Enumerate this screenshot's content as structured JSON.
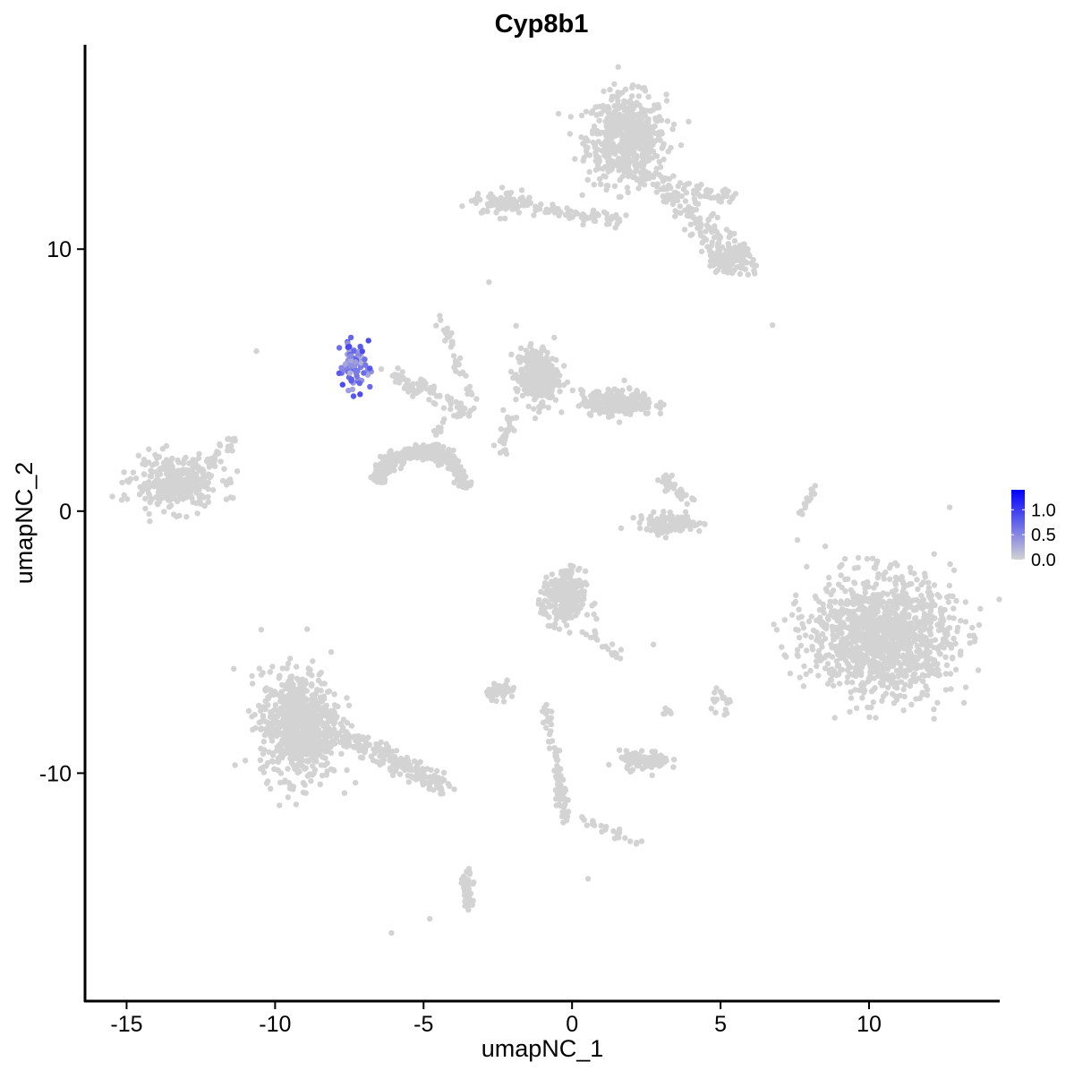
{
  "chart_data": {
    "type": "scatter",
    "title": "Cyp8b1",
    "xlabel": "umapNC_1",
    "ylabel": "umapNC_2",
    "xlim": [
      -16.4,
      14.4
    ],
    "ylim": [
      -18.7,
      17.8
    ],
    "x_ticks": [
      -15,
      -10,
      -5,
      0,
      5,
      10
    ],
    "x_tick_labels": [
      "-15",
      "-10",
      "-5",
      "0",
      "5",
      "10"
    ],
    "y_ticks": [
      -10,
      0,
      10
    ],
    "y_tick_labels": [
      "-10",
      "0",
      "10"
    ],
    "grid": false,
    "legend": {
      "position": "right",
      "type": "colorbar",
      "tick_labels": [
        "1.0",
        "0.5",
        "0.0"
      ],
      "tick_values": [
        1.0,
        0.5,
        0.0
      ],
      "range": [
        0,
        1.4
      ],
      "low_color": "#d3d3d3",
      "high_color": "#0000ff"
    },
    "note_clusters": "cells shown as groups of points in data units",
    "clusters": [
      {
        "kind": "blob",
        "c": [
          1.84,
          14.2
        ],
        "s": [
          1.1,
          1.4
        ],
        "n": 600
      },
      {
        "kind": "seg",
        "a": [
          2.74,
          12.66
        ],
        "b": [
          5.75,
          9.59
        ],
        "w": 0.5,
        "n": 150
      },
      {
        "kind": "blob",
        "c": [
          5.3,
          9.59
        ],
        "s": [
          0.7,
          0.4
        ],
        "n": 100
      },
      {
        "kind": "seg",
        "a": [
          3.64,
          12.32
        ],
        "b": [
          5.45,
          11.98
        ],
        "w": 0.3,
        "n": 40
      },
      {
        "kind": "blob",
        "c": [
          -2.38,
          11.8
        ],
        "s": [
          0.7,
          0.35
        ],
        "n": 80
      },
      {
        "kind": "seg",
        "a": [
          -2.38,
          11.64
        ],
        "b": [
          1.84,
          11.13
        ],
        "w": 0.25,
        "n": 80
      },
      {
        "kind": "blob",
        "c": [
          -13.37,
          1.06
        ],
        "s": [
          1.2,
          0.8
        ],
        "n": 350
      },
      {
        "kind": "seg",
        "a": [
          -12.32,
          1.74
        ],
        "b": [
          -11.42,
          2.76
        ],
        "w": 0.2,
        "n": 30
      },
      {
        "kind": "seg",
        "a": [
          -5.99,
          5.15
        ],
        "b": [
          -3.58,
          3.79
        ],
        "w": 0.35,
        "n": 80
      },
      {
        "kind": "seg",
        "a": [
          -4.49,
          7.54
        ],
        "b": [
          -3.28,
          4.13
        ],
        "w": 0.2,
        "n": 40
      },
      {
        "kind": "seg",
        "a": [
          -4.49,
          3.45
        ],
        "b": [
          -4.64,
          1.74
        ],
        "w": 0.2,
        "n": 20
      },
      {
        "kind": "arc",
        "c": [
          -5.09,
          0.89
        ],
        "r": [
          1.5,
          1.4
        ],
        "w": 0.3,
        "n": 400
      },
      {
        "kind": "blob",
        "c": [
          -1.17,
          5.15
        ],
        "s": [
          0.6,
          0.9
        ],
        "n": 300
      },
      {
        "kind": "blob",
        "c": [
          1.54,
          4.13
        ],
        "s": [
          1.0,
          0.4
        ],
        "n": 250
      },
      {
        "kind": "seg",
        "a": [
          -2.08,
          3.79
        ],
        "b": [
          -2.38,
          2.08
        ],
        "w": 0.2,
        "n": 30
      },
      {
        "kind": "blob",
        "c": [
          3.34,
          -0.48
        ],
        "s": [
          0.9,
          0.3
        ],
        "n": 120
      },
      {
        "kind": "seg",
        "a": [
          3.04,
          1.23
        ],
        "b": [
          3.95,
          0.38
        ],
        "w": 0.25,
        "n": 40
      },
      {
        "kind": "blob",
        "c": [
          10.42,
          -4.74
        ],
        "s": [
          2.0,
          1.9
        ],
        "n": 1200
      },
      {
        "kind": "blob",
        "c": [
          -0.27,
          -3.38
        ],
        "s": [
          0.6,
          0.9
        ],
        "n": 250
      },
      {
        "kind": "seg",
        "a": [
          0.33,
          -4.4
        ],
        "b": [
          1.57,
          -5.6
        ],
        "w": 0.2,
        "n": 20
      },
      {
        "kind": "blob",
        "c": [
          -9.16,
          -8.16
        ],
        "s": [
          1.1,
          1.7
        ],
        "n": 800
      },
      {
        "kind": "seg",
        "a": [
          -7.8,
          -8.5
        ],
        "b": [
          -4.19,
          -10.55
        ],
        "w": 0.4,
        "n": 200
      },
      {
        "kind": "blob",
        "c": [
          2.44,
          -9.52
        ],
        "s": [
          0.7,
          0.3
        ],
        "n": 100
      },
      {
        "kind": "blob",
        "c": [
          -2.38,
          -6.86
        ],
        "s": [
          0.4,
          0.25
        ],
        "n": 60
      },
      {
        "kind": "seg",
        "a": [
          -0.87,
          -7.47
        ],
        "b": [
          -0.21,
          -11.9
        ],
        "w": 0.2,
        "n": 80
      },
      {
        "kind": "seg",
        "a": [
          0.33,
          -11.74
        ],
        "b": [
          2.44,
          -12.76
        ],
        "w": 0.2,
        "n": 25
      },
      {
        "kind": "seg",
        "a": [
          -3.64,
          -13.6
        ],
        "b": [
          -3.43,
          -15.15
        ],
        "w": 0.2,
        "n": 50
      },
      {
        "kind": "seg",
        "a": [
          7.71,
          -0.14
        ],
        "b": [
          8.16,
          0.89
        ],
        "w": 0.1,
        "n": 20
      },
      {
        "kind": "blob",
        "c": [
          5.0,
          -7.3
        ],
        "s": [
          0.3,
          0.3
        ],
        "n": 20
      },
      {
        "kind": "blob",
        "c": [
          3.19,
          -7.65
        ],
        "s": [
          0.15,
          0.2
        ],
        "n": 8
      }
    ],
    "single_points": [
      [
        -10.63,
        6.11
      ],
      [
        6.75,
        7.1
      ],
      [
        -6.08,
        -16.1
      ],
      [
        -4.79,
        -15.56
      ],
      [
        0.54,
        -14.03
      ],
      [
        2.74,
        -5.09
      ],
      [
        -2.8,
        8.74
      ]
    ],
    "expressing_cluster": {
      "c": [
        -7.35,
        5.5
      ],
      "s": [
        0.35,
        0.8
      ],
      "n": 90,
      "value_range": [
        0.2,
        1.4
      ]
    }
  }
}
